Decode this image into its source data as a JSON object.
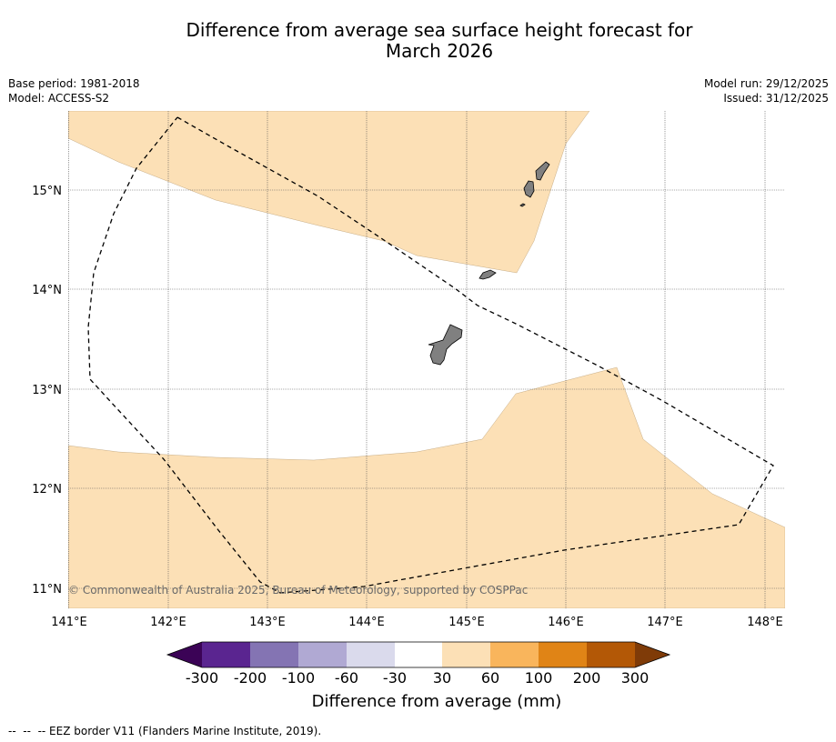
{
  "title_line1": "Difference from average sea surface height forecast for",
  "title_line2": "March 2026",
  "meta_left": {
    "base_period": "Base period: 1981-2018",
    "model": "Model: ACCESS-S2"
  },
  "meta_right": {
    "model_run": "Model run: 29/12/2025",
    "issued": "Issued: 31/12/2025"
  },
  "map": {
    "lon_ticks": [
      "141°E",
      "142°E",
      "143°E",
      "144°E",
      "145°E",
      "146°E",
      "147°E",
      "148°E"
    ],
    "lat_ticks": [
      "15°N",
      "14°N",
      "13°N",
      "12°N",
      "11°N"
    ],
    "copyright": "© Commonwealth of Australia 2025, Bureau of Meteorology, supported by COSPPac",
    "anomaly_color": "#fce0b6",
    "land_color": "#808080"
  },
  "colorbar": {
    "colors": [
      "#3b0356",
      "#5a2590",
      "#8474b3",
      "#b0a9d3",
      "#dadaec",
      "#ffffff",
      "#fce0b6",
      "#f9b55c",
      "#e08416",
      "#b35806",
      "#7f3b08"
    ],
    "ticks": [
      "-300",
      "-200",
      "-100",
      "-60",
      "-30",
      "30",
      "60",
      "100",
      "200",
      "300"
    ],
    "title": "Difference from average (mm)"
  },
  "footnote": "--  --  -- EEZ border V11 (Flanders Marine Institute, 2019)."
}
